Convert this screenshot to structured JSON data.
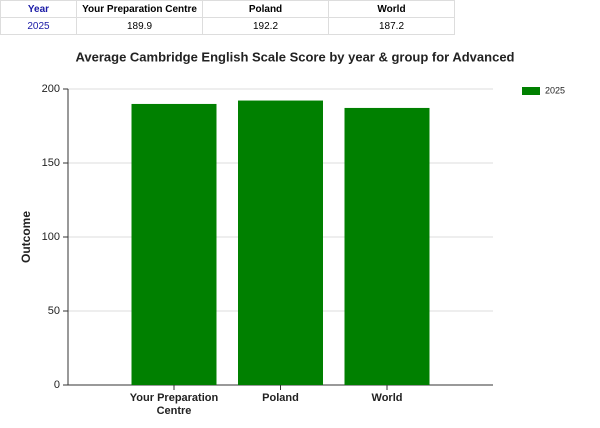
{
  "table": {
    "header": [
      "Year",
      "Your Preparation Centre",
      "Poland",
      "World"
    ],
    "rows": [
      [
        "2025",
        "189.9",
        "192.2",
        "187.2"
      ]
    ]
  },
  "chart_data": {
    "type": "bar",
    "title": "Average Cambridge English Scale Score by year & group for Advanced",
    "y_label": "Outcome",
    "categories": [
      "Your Preparation Centre",
      "Poland",
      "World"
    ],
    "series": [
      {
        "name": "2025",
        "color": "#008000",
        "values": [
          189.9,
          192.2,
          187.2
        ]
      }
    ],
    "ylim": [
      0,
      200
    ],
    "yticks": [
      0,
      50,
      100,
      150,
      200
    ],
    "grid": true,
    "legend": "right"
  }
}
